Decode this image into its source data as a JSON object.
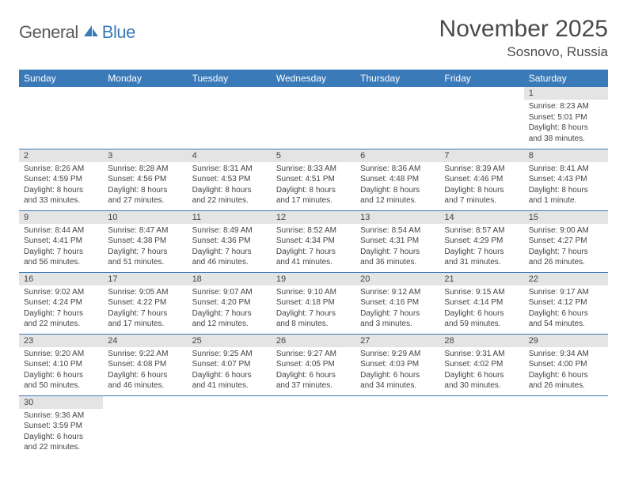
{
  "logo": {
    "part1": "General",
    "part2": "Blue"
  },
  "title": "November 2025",
  "location": "Sosnovo, Russia",
  "colors": {
    "header_bg": "#3a7ab8",
    "header_text": "#ffffff",
    "daynum_bg": "#e4e4e4",
    "row_border": "#3a7ab8",
    "logo_gray": "#5a5a5a",
    "logo_blue": "#3a7ab8"
  },
  "weekdays": [
    "Sunday",
    "Monday",
    "Tuesday",
    "Wednesday",
    "Thursday",
    "Friday",
    "Saturday"
  ],
  "weeks": [
    [
      null,
      null,
      null,
      null,
      null,
      null,
      {
        "n": "1",
        "sr": "Sunrise: 8:23 AM",
        "ss": "Sunset: 5:01 PM",
        "dl": "Daylight: 8 hours and 38 minutes."
      }
    ],
    [
      {
        "n": "2",
        "sr": "Sunrise: 8:26 AM",
        "ss": "Sunset: 4:59 PM",
        "dl": "Daylight: 8 hours and 33 minutes."
      },
      {
        "n": "3",
        "sr": "Sunrise: 8:28 AM",
        "ss": "Sunset: 4:56 PM",
        "dl": "Daylight: 8 hours and 27 minutes."
      },
      {
        "n": "4",
        "sr": "Sunrise: 8:31 AM",
        "ss": "Sunset: 4:53 PM",
        "dl": "Daylight: 8 hours and 22 minutes."
      },
      {
        "n": "5",
        "sr": "Sunrise: 8:33 AM",
        "ss": "Sunset: 4:51 PM",
        "dl": "Daylight: 8 hours and 17 minutes."
      },
      {
        "n": "6",
        "sr": "Sunrise: 8:36 AM",
        "ss": "Sunset: 4:48 PM",
        "dl": "Daylight: 8 hours and 12 minutes."
      },
      {
        "n": "7",
        "sr": "Sunrise: 8:39 AM",
        "ss": "Sunset: 4:46 PM",
        "dl": "Daylight: 8 hours and 7 minutes."
      },
      {
        "n": "8",
        "sr": "Sunrise: 8:41 AM",
        "ss": "Sunset: 4:43 PM",
        "dl": "Daylight: 8 hours and 1 minute."
      }
    ],
    [
      {
        "n": "9",
        "sr": "Sunrise: 8:44 AM",
        "ss": "Sunset: 4:41 PM",
        "dl": "Daylight: 7 hours and 56 minutes."
      },
      {
        "n": "10",
        "sr": "Sunrise: 8:47 AM",
        "ss": "Sunset: 4:38 PM",
        "dl": "Daylight: 7 hours and 51 minutes."
      },
      {
        "n": "11",
        "sr": "Sunrise: 8:49 AM",
        "ss": "Sunset: 4:36 PM",
        "dl": "Daylight: 7 hours and 46 minutes."
      },
      {
        "n": "12",
        "sr": "Sunrise: 8:52 AM",
        "ss": "Sunset: 4:34 PM",
        "dl": "Daylight: 7 hours and 41 minutes."
      },
      {
        "n": "13",
        "sr": "Sunrise: 8:54 AM",
        "ss": "Sunset: 4:31 PM",
        "dl": "Daylight: 7 hours and 36 minutes."
      },
      {
        "n": "14",
        "sr": "Sunrise: 8:57 AM",
        "ss": "Sunset: 4:29 PM",
        "dl": "Daylight: 7 hours and 31 minutes."
      },
      {
        "n": "15",
        "sr": "Sunrise: 9:00 AM",
        "ss": "Sunset: 4:27 PM",
        "dl": "Daylight: 7 hours and 26 minutes."
      }
    ],
    [
      {
        "n": "16",
        "sr": "Sunrise: 9:02 AM",
        "ss": "Sunset: 4:24 PM",
        "dl": "Daylight: 7 hours and 22 minutes."
      },
      {
        "n": "17",
        "sr": "Sunrise: 9:05 AM",
        "ss": "Sunset: 4:22 PM",
        "dl": "Daylight: 7 hours and 17 minutes."
      },
      {
        "n": "18",
        "sr": "Sunrise: 9:07 AM",
        "ss": "Sunset: 4:20 PM",
        "dl": "Daylight: 7 hours and 12 minutes."
      },
      {
        "n": "19",
        "sr": "Sunrise: 9:10 AM",
        "ss": "Sunset: 4:18 PM",
        "dl": "Daylight: 7 hours and 8 minutes."
      },
      {
        "n": "20",
        "sr": "Sunrise: 9:12 AM",
        "ss": "Sunset: 4:16 PM",
        "dl": "Daylight: 7 hours and 3 minutes."
      },
      {
        "n": "21",
        "sr": "Sunrise: 9:15 AM",
        "ss": "Sunset: 4:14 PM",
        "dl": "Daylight: 6 hours and 59 minutes."
      },
      {
        "n": "22",
        "sr": "Sunrise: 9:17 AM",
        "ss": "Sunset: 4:12 PM",
        "dl": "Daylight: 6 hours and 54 minutes."
      }
    ],
    [
      {
        "n": "23",
        "sr": "Sunrise: 9:20 AM",
        "ss": "Sunset: 4:10 PM",
        "dl": "Daylight: 6 hours and 50 minutes."
      },
      {
        "n": "24",
        "sr": "Sunrise: 9:22 AM",
        "ss": "Sunset: 4:08 PM",
        "dl": "Daylight: 6 hours and 46 minutes."
      },
      {
        "n": "25",
        "sr": "Sunrise: 9:25 AM",
        "ss": "Sunset: 4:07 PM",
        "dl": "Daylight: 6 hours and 41 minutes."
      },
      {
        "n": "26",
        "sr": "Sunrise: 9:27 AM",
        "ss": "Sunset: 4:05 PM",
        "dl": "Daylight: 6 hours and 37 minutes."
      },
      {
        "n": "27",
        "sr": "Sunrise: 9:29 AM",
        "ss": "Sunset: 4:03 PM",
        "dl": "Daylight: 6 hours and 34 minutes."
      },
      {
        "n": "28",
        "sr": "Sunrise: 9:31 AM",
        "ss": "Sunset: 4:02 PM",
        "dl": "Daylight: 6 hours and 30 minutes."
      },
      {
        "n": "29",
        "sr": "Sunrise: 9:34 AM",
        "ss": "Sunset: 4:00 PM",
        "dl": "Daylight: 6 hours and 26 minutes."
      }
    ],
    [
      {
        "n": "30",
        "sr": "Sunrise: 9:36 AM",
        "ss": "Sunset: 3:59 PM",
        "dl": "Daylight: 6 hours and 22 minutes."
      },
      null,
      null,
      null,
      null,
      null,
      null
    ]
  ]
}
